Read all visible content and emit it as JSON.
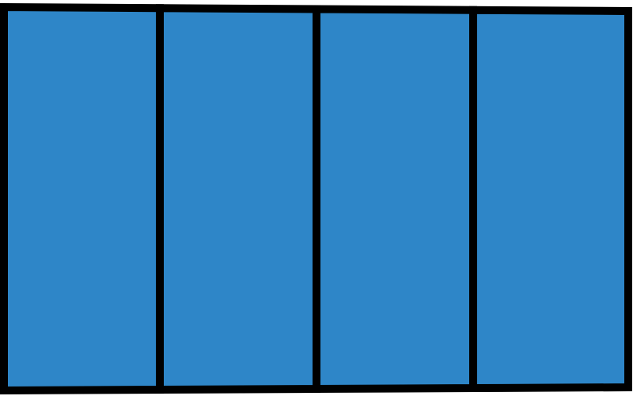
{
  "diagram": {
    "type": "partitioned-rectangle",
    "parts": 4,
    "shaded_parts": 4,
    "fill_color": "#2E86C8",
    "stroke_color": "#000000",
    "background_color": "#FFFFFF"
  }
}
